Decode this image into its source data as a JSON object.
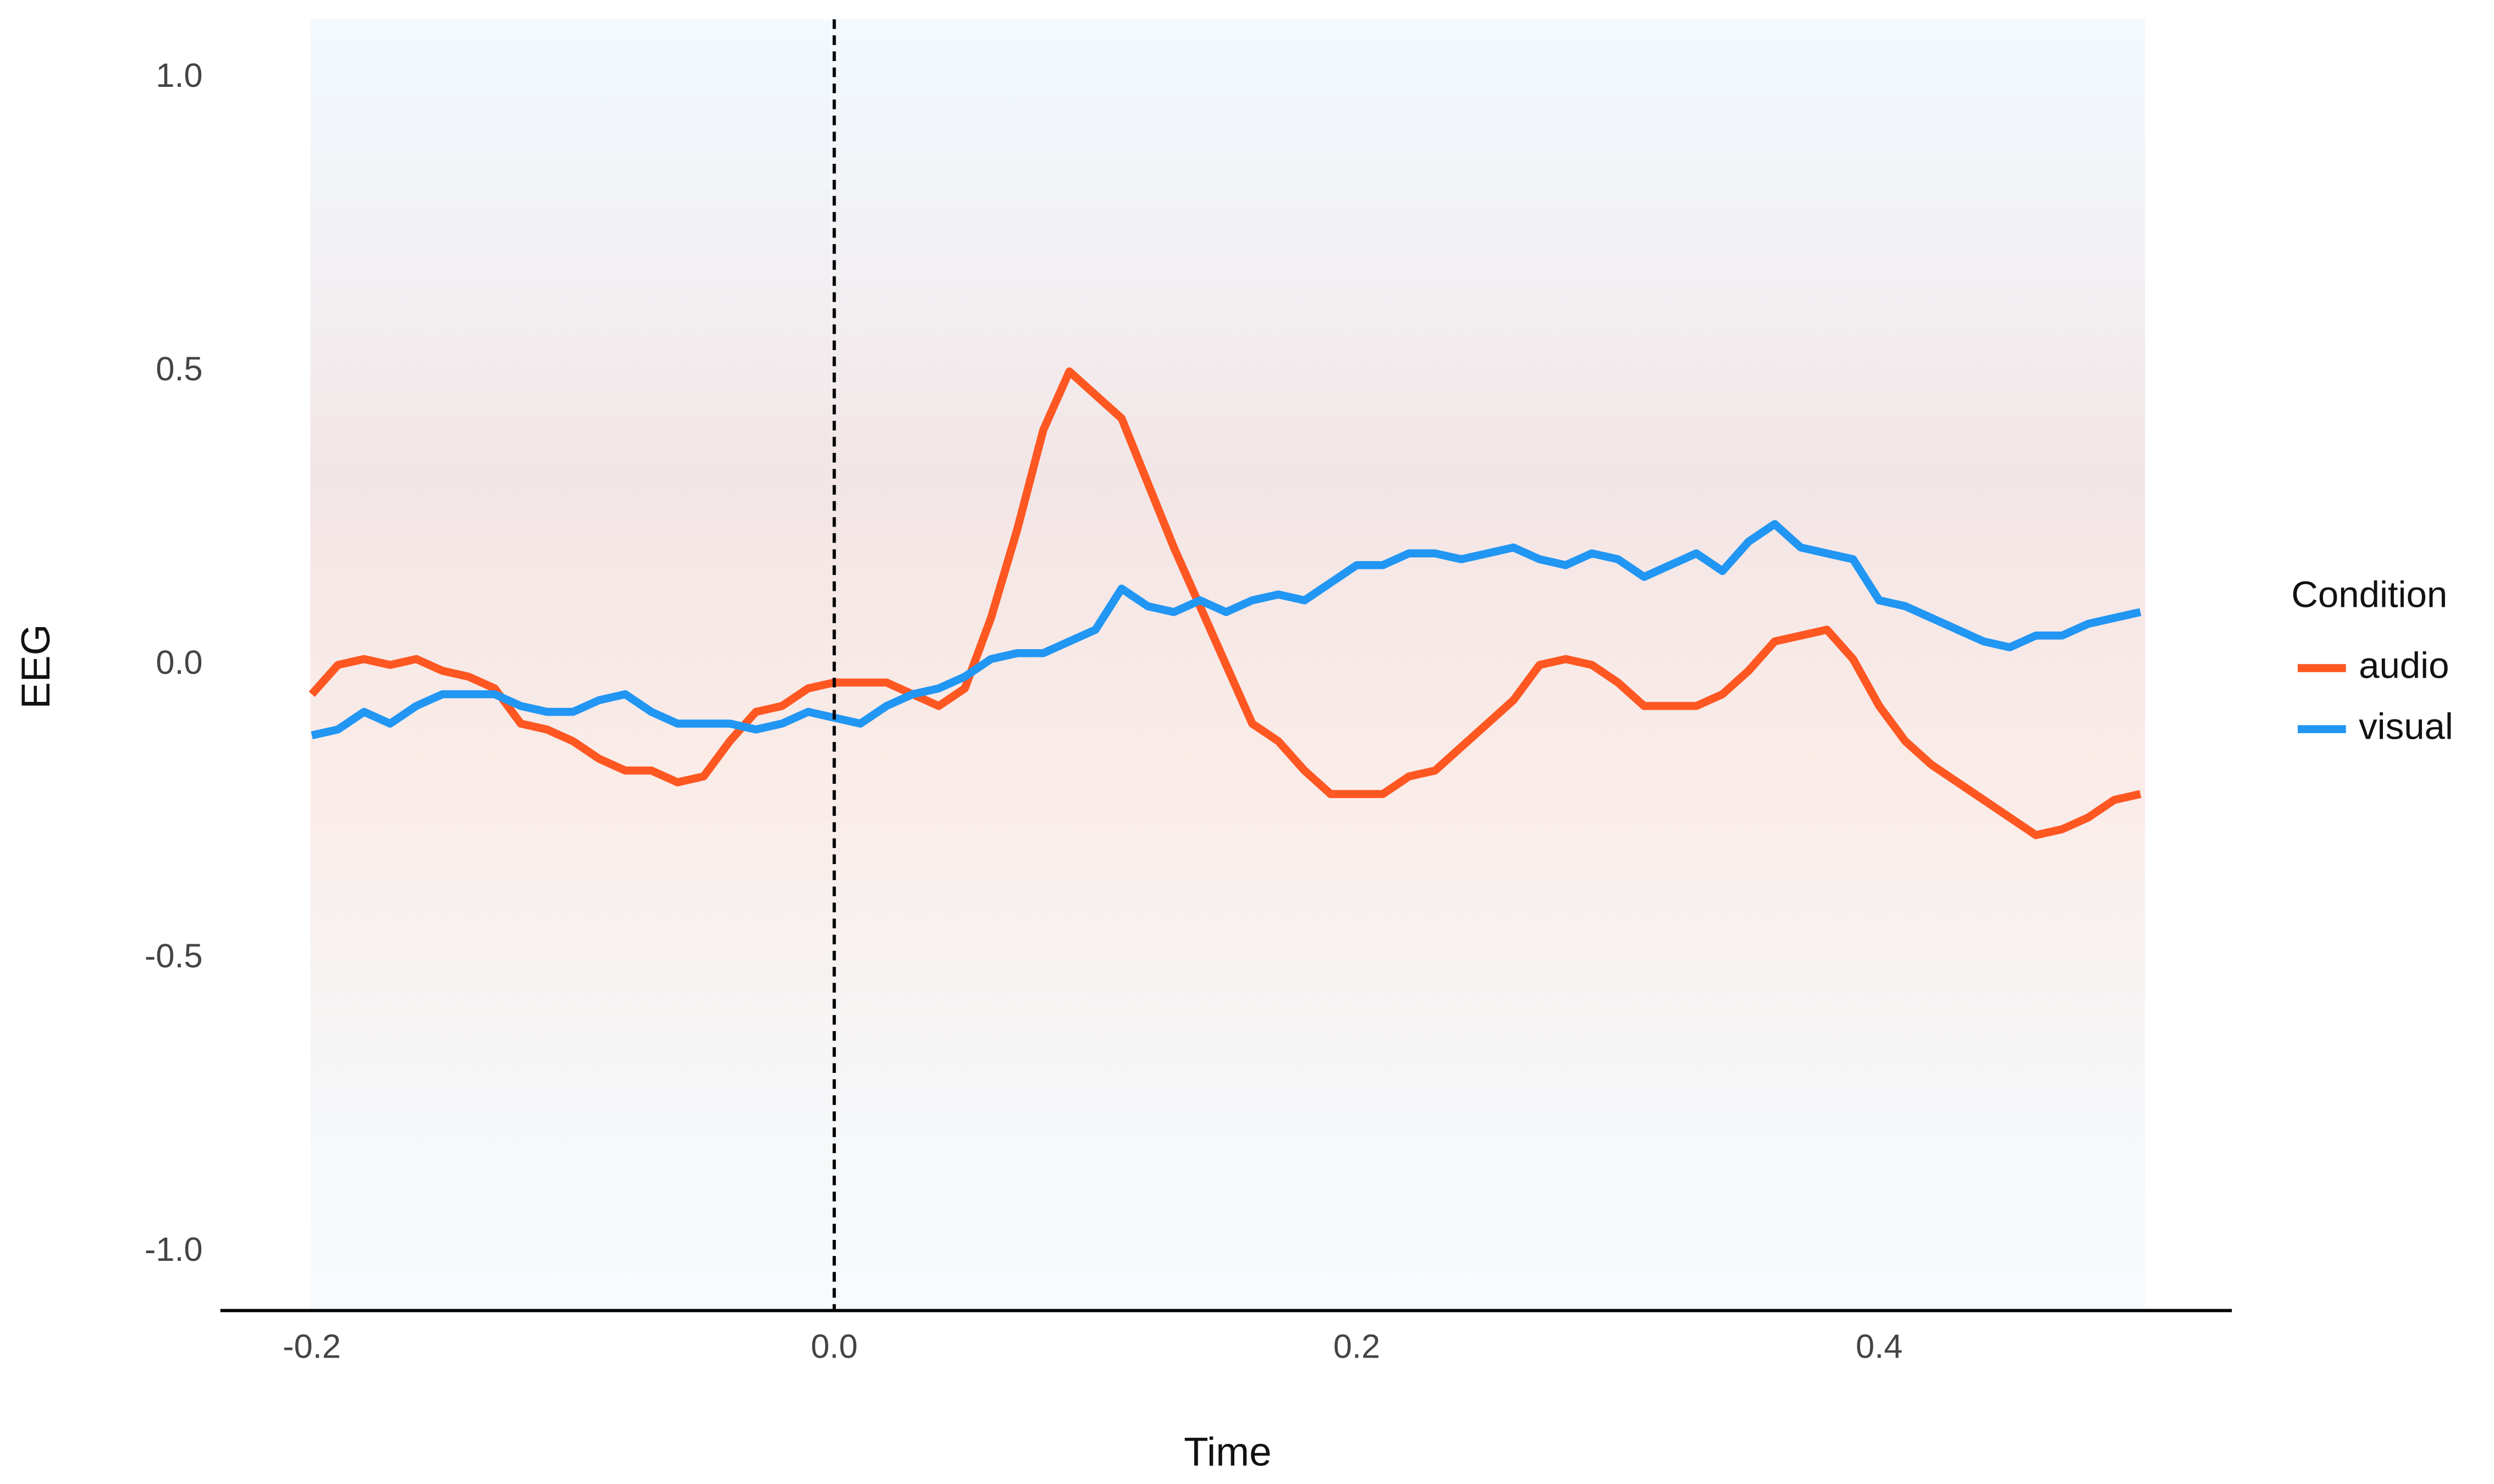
{
  "chart_data": {
    "type": "line",
    "x_label": "Time",
    "y_label": "EEG",
    "legend_title": "Condition",
    "legend_position": "right",
    "x": [
      -0.2,
      -0.19,
      -0.18,
      -0.17,
      -0.16,
      -0.15,
      -0.14,
      -0.13,
      -0.12,
      -0.11,
      -0.1,
      -0.09,
      -0.08,
      -0.07,
      -0.06,
      -0.05,
      -0.04,
      -0.03,
      -0.02,
      -0.01,
      0,
      0.01,
      0.02,
      0.03,
      0.04,
      0.05,
      0.06,
      0.07,
      0.08,
      0.09,
      0.1,
      0.11,
      0.12,
      0.13,
      0.14,
      0.15,
      0.16,
      0.17,
      0.18,
      0.19,
      0.2,
      0.21,
      0.22,
      0.23,
      0.24,
      0.25,
      0.26,
      0.27,
      0.28,
      0.29,
      0.3,
      0.31,
      0.32,
      0.33,
      0.34,
      0.35,
      0.36,
      0.37,
      0.38,
      0.39,
      0.4,
      0.41,
      0.42,
      0.43,
      0.44,
      0.45,
      0.46,
      0.47,
      0.48,
      0.49,
      0.5
    ],
    "series": [
      {
        "name": "audio",
        "color": "#ff5722",
        "values": [
          -0.05,
          0,
          0.01,
          0,
          0.01,
          -0.01,
          -0.02,
          -0.04,
          -0.1,
          -0.11,
          -0.13,
          -0.16,
          -0.18,
          -0.18,
          -0.2,
          -0.19,
          -0.13,
          -0.08,
          -0.07,
          -0.04,
          -0.03,
          -0.03,
          -0.03,
          -0.05,
          -0.07,
          -0.04,
          0.08,
          0.23,
          0.4,
          0.5,
          0.46,
          0.42,
          0.31,
          0.2,
          0.1,
          0,
          -0.1,
          -0.13,
          -0.18,
          -0.22,
          -0.22,
          -0.22,
          -0.19,
          -0.18,
          -0.14,
          -0.1,
          -0.06,
          0,
          0.01,
          0,
          -0.03,
          -0.07,
          -0.07,
          -0.07,
          -0.05,
          -0.01,
          0.04,
          0.05,
          0.06,
          0.01,
          -0.07,
          -0.13,
          -0.17,
          -0.2,
          -0.23,
          -0.26,
          -0.29,
          -0.28,
          -0.26,
          -0.23,
          -0.22
        ]
      },
      {
        "name": "visual",
        "color": "#2196f3",
        "values": [
          -0.12,
          -0.11,
          -0.08,
          -0.1,
          -0.07,
          -0.05,
          -0.05,
          -0.05,
          -0.07,
          -0.08,
          -0.08,
          -0.06,
          -0.05,
          -0.08,
          -0.1,
          -0.1,
          -0.1,
          -0.11,
          -0.1,
          -0.08,
          -0.09,
          -0.1,
          -0.07,
          -0.05,
          -0.04,
          -0.02,
          0.01,
          0.02,
          0.02,
          0.04,
          0.06,
          0.13,
          0.1,
          0.09,
          0.11,
          0.09,
          0.11,
          0.12,
          0.11,
          0.14,
          0.17,
          0.17,
          0.19,
          0.19,
          0.18,
          0.19,
          0.2,
          0.18,
          0.17,
          0.19,
          0.18,
          0.15,
          0.17,
          0.19,
          0.16,
          0.21,
          0.24,
          0.2,
          0.19,
          0.18,
          0.11,
          0.1,
          0.08,
          0.06,
          0.04,
          0.03,
          0.05,
          0.05,
          0.07,
          0.08,
          0.09
        ]
      }
    ],
    "vlines": [
      0
    ],
    "xlim": [
      -0.235,
      0.535
    ],
    "ylim": [
      -1.1,
      1.1
    ],
    "xticks": [
      -0.2,
      {
        "value": 0,
        "label": "0.0"
      },
      0.2,
      0.4
    ],
    "yticks": [
      {
        "value": -1,
        "label": "-1.0"
      },
      -0.5,
      {
        "value": 0,
        "label": "0.0"
      },
      0.5,
      {
        "value": 1,
        "label": "1.0"
      }
    ],
    "grid": false
  }
}
